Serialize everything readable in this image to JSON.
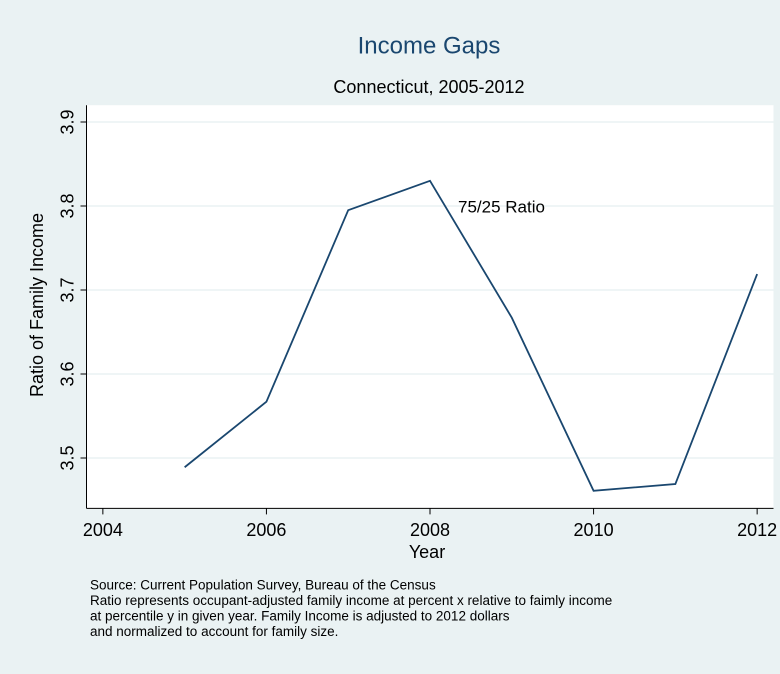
{
  "chart_data": {
    "type": "line",
    "title": "Income Gaps",
    "subtitle": "Connecticut, 2005-2012",
    "x": [
      2005,
      2006,
      2007,
      2008,
      2009,
      2010,
      2011,
      2012
    ],
    "series": [
      {
        "name": "75/25 Ratio",
        "color": "#1a476f",
        "values": [
          3.489,
          3.567,
          3.795,
          3.83,
          3.667,
          3.461,
          3.469,
          3.719
        ]
      }
    ],
    "x_label": "Year",
    "y_label": "Ratio of Family Income",
    "xlim": [
      2003.8,
      2012.2
    ],
    "xticks": [
      2004,
      2006,
      2008,
      2010,
      2012
    ],
    "ylim": [
      3.44,
      3.92
    ],
    "yticks": [
      3.5,
      3.6,
      3.7,
      3.8,
      3.9
    ],
    "grid": true,
    "note": [
      "Source: Current Population Survey, Bureau of the Census",
      "Ratio represents occupant-adjusted family income at percent x relative to faimly income",
      "at percentile y in given year. Family Income is adjusted to 2012 dollars",
      "and normalized to account for family size."
    ]
  }
}
